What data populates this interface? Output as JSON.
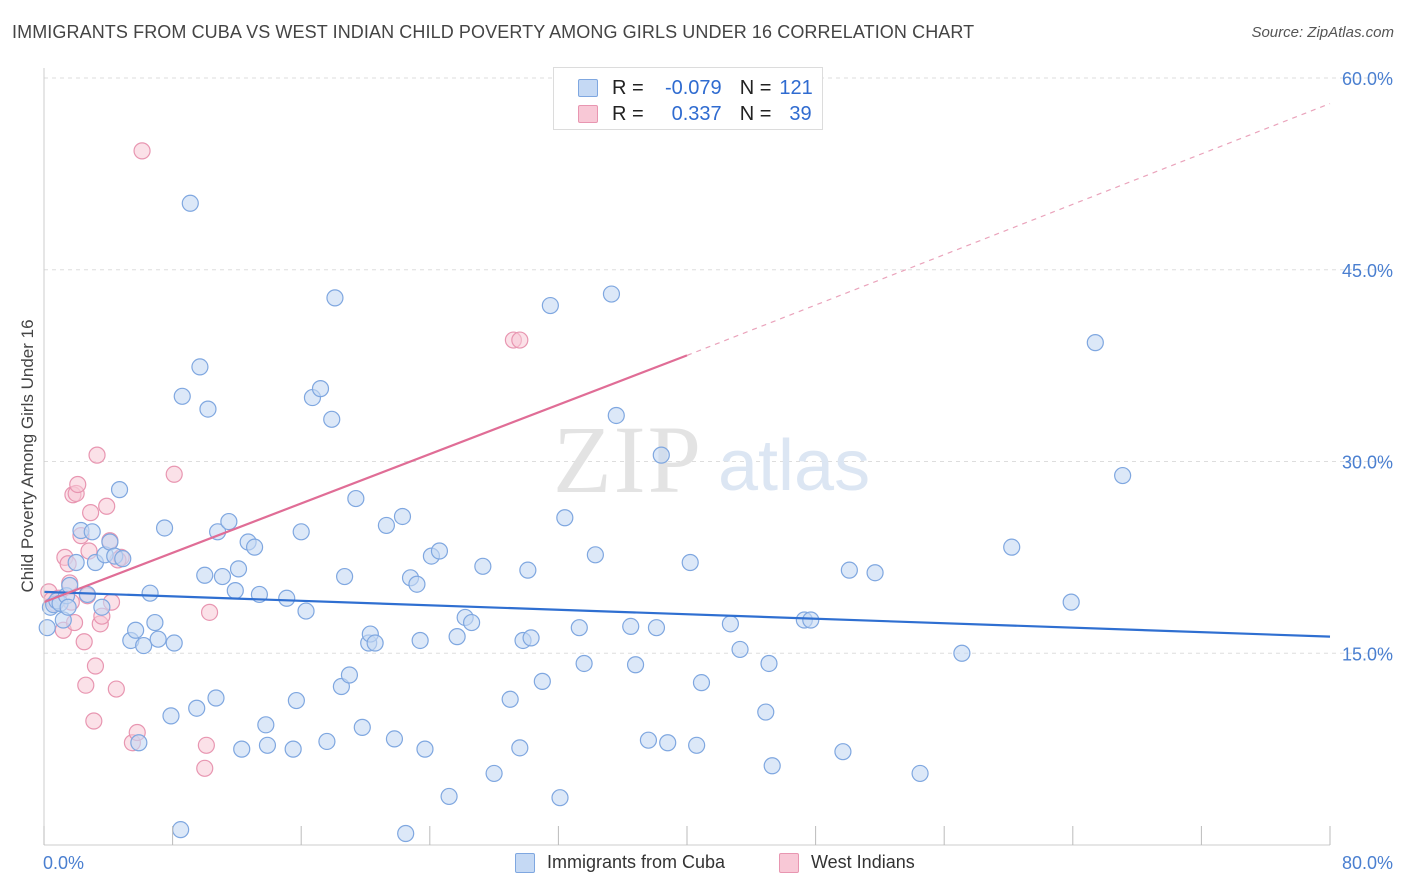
{
  "title": "IMMIGRANTS FROM CUBA VS WEST INDIAN CHILD POVERTY AMONG GIRLS UNDER 16 CORRELATION CHART",
  "source": "Source: ZipAtlas.com",
  "watermark": {
    "zip": "ZIP",
    "atlas": "atlas"
  },
  "legend": {
    "r_label": "R =",
    "n_label": "N =",
    "rows": [
      {
        "r": "-0.079",
        "n": "121"
      },
      {
        "r": "0.337",
        "n": "39"
      }
    ]
  },
  "colors": {
    "cuba_fill": "#c5d9f4",
    "cuba_stroke": "#7fa7e0",
    "cuba_line": "#2f6fd1",
    "wi_fill": "#f8c8d6",
    "wi_stroke": "#e896b1",
    "wi_line": "#e06d96",
    "grid": "#dddddd",
    "axis_label": "#4a7fd0"
  },
  "chart_data": {
    "type": "scatter",
    "title": "IMMIGRANTS FROM CUBA VS WEST INDIAN CHILD POVERTY AMONG GIRLS UNDER 16 CORRELATION CHART",
    "xlabel": "",
    "ylabel": "Child Poverty Among Girls Under 16",
    "xlim": [
      0,
      80
    ],
    "ylim": [
      0,
      60
    ],
    "x_tick_labels": [
      "0.0%",
      "80.0%"
    ],
    "y_ticks": [
      15,
      30,
      45,
      60
    ],
    "y_tick_labels": [
      "15.0%",
      "30.0%",
      "45.0%",
      "60.0%"
    ],
    "legend_items": [
      "Immigrants from Cuba",
      "West Indians"
    ],
    "series": [
      {
        "name": "Immigrants from Cuba",
        "trend": {
          "x0": 0,
          "y0": 19.8,
          "x1": 80,
          "y1": 16.3
        },
        "points": [
          [
            0.2,
            17.0
          ],
          [
            0.4,
            18.6
          ],
          [
            0.6,
            18.8
          ],
          [
            0.8,
            19.1
          ],
          [
            1.0,
            18.9
          ],
          [
            1.2,
            17.6
          ],
          [
            1.4,
            19.5
          ],
          [
            1.5,
            18.6
          ],
          [
            1.6,
            20.3
          ],
          [
            2.0,
            22.1
          ],
          [
            2.3,
            24.6
          ],
          [
            2.7,
            19.6
          ],
          [
            3.0,
            24.5
          ],
          [
            3.2,
            22.1
          ],
          [
            3.6,
            18.6
          ],
          [
            3.8,
            22.7
          ],
          [
            4.1,
            23.7
          ],
          [
            4.4,
            22.6
          ],
          [
            4.7,
            27.8
          ],
          [
            4.9,
            22.4
          ],
          [
            5.4,
            16.0
          ],
          [
            5.7,
            16.8
          ],
          [
            5.9,
            8.0
          ],
          [
            6.2,
            15.6
          ],
          [
            6.6,
            19.7
          ],
          [
            6.9,
            17.4
          ],
          [
            7.1,
            16.1
          ],
          [
            7.5,
            24.8
          ],
          [
            7.9,
            10.1
          ],
          [
            8.1,
            15.8
          ],
          [
            8.5,
            1.2
          ],
          [
            8.6,
            35.1
          ],
          [
            9.1,
            50.2
          ],
          [
            9.5,
            10.7
          ],
          [
            9.7,
            37.4
          ],
          [
            10.0,
            21.1
          ],
          [
            10.2,
            34.1
          ],
          [
            10.7,
            11.5
          ],
          [
            10.8,
            24.5
          ],
          [
            11.1,
            21.0
          ],
          [
            11.5,
            25.3
          ],
          [
            11.9,
            19.9
          ],
          [
            12.1,
            21.6
          ],
          [
            12.3,
            7.5
          ],
          [
            12.7,
            23.7
          ],
          [
            13.1,
            23.3
          ],
          [
            13.4,
            19.6
          ],
          [
            13.8,
            9.4
          ],
          [
            13.9,
            7.8
          ],
          [
            15.1,
            19.3
          ],
          [
            15.5,
            7.5
          ],
          [
            15.7,
            11.3
          ],
          [
            16.0,
            24.5
          ],
          [
            16.3,
            18.3
          ],
          [
            16.7,
            35.0
          ],
          [
            17.2,
            35.7
          ],
          [
            17.6,
            8.1
          ],
          [
            17.9,
            33.3
          ],
          [
            18.1,
            42.8
          ],
          [
            18.5,
            12.4
          ],
          [
            18.7,
            21.0
          ],
          [
            19.0,
            13.3
          ],
          [
            19.4,
            27.1
          ],
          [
            19.8,
            9.2
          ],
          [
            20.2,
            15.8
          ],
          [
            20.3,
            16.5
          ],
          [
            20.6,
            15.8
          ],
          [
            21.3,
            25.0
          ],
          [
            21.8,
            8.3
          ],
          [
            22.3,
            25.7
          ],
          [
            22.5,
            0.9
          ],
          [
            22.8,
            20.9
          ],
          [
            23.2,
            20.4
          ],
          [
            23.4,
            16.0
          ],
          [
            23.7,
            7.5
          ],
          [
            24.1,
            22.6
          ],
          [
            24.6,
            23.0
          ],
          [
            25.2,
            3.8
          ],
          [
            25.7,
            16.3
          ],
          [
            26.2,
            17.8
          ],
          [
            26.6,
            17.4
          ],
          [
            27.3,
            21.8
          ],
          [
            28.0,
            5.6
          ],
          [
            29.0,
            11.4
          ],
          [
            29.6,
            7.6
          ],
          [
            29.8,
            16.0
          ],
          [
            30.1,
            21.5
          ],
          [
            30.3,
            16.2
          ],
          [
            31.0,
            12.8
          ],
          [
            31.5,
            42.2
          ],
          [
            32.1,
            3.7
          ],
          [
            32.4,
            25.6
          ],
          [
            33.3,
            17.0
          ],
          [
            33.6,
            14.2
          ],
          [
            34.3,
            22.7
          ],
          [
            35.3,
            43.1
          ],
          [
            35.6,
            33.6
          ],
          [
            36.5,
            17.1
          ],
          [
            36.8,
            14.1
          ],
          [
            37.6,
            8.2
          ],
          [
            38.1,
            17.0
          ],
          [
            38.4,
            30.5
          ],
          [
            38.8,
            8.0
          ],
          [
            40.2,
            22.1
          ],
          [
            40.6,
            7.8
          ],
          [
            40.9,
            12.7
          ],
          [
            42.7,
            17.3
          ],
          [
            43.3,
            15.3
          ],
          [
            44.9,
            10.4
          ],
          [
            45.1,
            14.2
          ],
          [
            45.3,
            6.2
          ],
          [
            47.3,
            17.6
          ],
          [
            47.7,
            17.6
          ],
          [
            49.7,
            7.3
          ],
          [
            50.1,
            21.5
          ],
          [
            51.7,
            21.3
          ],
          [
            54.5,
            5.6
          ],
          [
            57.1,
            15.0
          ],
          [
            60.2,
            23.3
          ],
          [
            63.9,
            19.0
          ],
          [
            65.4,
            39.3
          ],
          [
            67.1,
            28.9
          ]
        ]
      },
      {
        "name": "West Indians",
        "trend": {
          "x0": 0,
          "y0": 19.0,
          "x1": 40,
          "y1": 38.3,
          "dash_to": {
            "x": 80,
            "y": 58.0
          }
        },
        "points": [
          [
            0.3,
            19.8
          ],
          [
            0.5,
            19.2
          ],
          [
            0.7,
            18.9
          ],
          [
            0.9,
            19.3
          ],
          [
            1.2,
            16.8
          ],
          [
            1.3,
            22.5
          ],
          [
            1.5,
            22.0
          ],
          [
            1.6,
            20.5
          ],
          [
            1.7,
            19.0
          ],
          [
            1.8,
            27.4
          ],
          [
            1.9,
            17.4
          ],
          [
            2.0,
            27.5
          ],
          [
            2.1,
            28.2
          ],
          [
            2.3,
            24.2
          ],
          [
            2.5,
            15.9
          ],
          [
            2.6,
            12.5
          ],
          [
            2.7,
            19.5
          ],
          [
            2.8,
            23.0
          ],
          [
            2.9,
            26.0
          ],
          [
            3.1,
            9.7
          ],
          [
            3.2,
            14.0
          ],
          [
            3.3,
            30.5
          ],
          [
            3.5,
            17.3
          ],
          [
            3.6,
            17.9
          ],
          [
            3.9,
            26.5
          ],
          [
            4.1,
            23.8
          ],
          [
            4.2,
            19.0
          ],
          [
            4.5,
            12.2
          ],
          [
            4.8,
            22.5
          ],
          [
            5.5,
            8.0
          ],
          [
            5.8,
            8.8
          ],
          [
            6.1,
            54.3
          ],
          [
            8.1,
            29.0
          ],
          [
            10.0,
            6.0
          ],
          [
            10.1,
            7.8
          ],
          [
            10.3,
            18.2
          ],
          [
            29.2,
            39.5
          ],
          [
            29.6,
            39.5
          ],
          [
            4.6,
            22.3
          ]
        ]
      }
    ]
  },
  "bottom_legend": {
    "cuba": "Immigrants from Cuba",
    "wi": "West Indians"
  }
}
